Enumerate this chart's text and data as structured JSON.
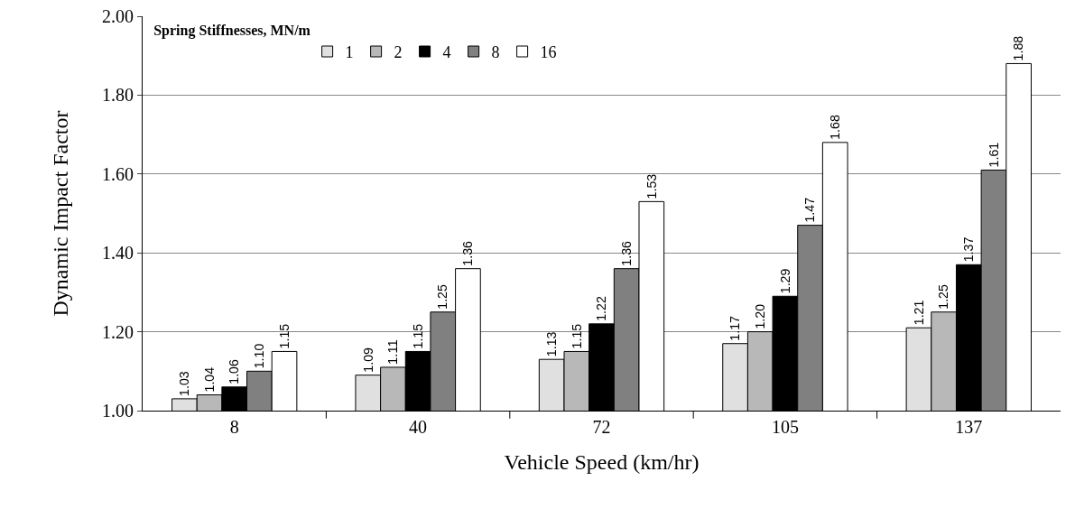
{
  "chart_data": {
    "type": "bar",
    "xlabel": "Vehicle Speed (km/hr)",
    "ylabel": "Dynamic Impact Factor",
    "legend_title": "Spring Stiffnesses, MN/m",
    "categories": [
      "8",
      "40",
      "72",
      "105",
      "137"
    ],
    "series": [
      {
        "name": "1",
        "color": "#e0e0e0",
        "values": [
          1.03,
          1.09,
          1.13,
          1.17,
          1.21
        ],
        "value_labels": [
          "1.03",
          "1.09",
          "1.13",
          "1.17",
          "1.21"
        ]
      },
      {
        "name": "2",
        "color": "#b8b8b8",
        "values": [
          1.04,
          1.11,
          1.15,
          1.2,
          1.25
        ],
        "value_labels": [
          "1.04",
          "1.11",
          "1.15",
          "1.20",
          "1.25"
        ]
      },
      {
        "name": "4",
        "color": "#000000",
        "values": [
          1.06,
          1.15,
          1.22,
          1.29,
          1.37
        ],
        "value_labels": [
          "1.06",
          "1.15",
          "1.22",
          "1.29",
          "1.37"
        ]
      },
      {
        "name": "8",
        "color": "#808080",
        "values": [
          1.1,
          1.25,
          1.36,
          1.47,
          1.61
        ],
        "value_labels": [
          "1.10",
          "1.25",
          "1.36",
          "1.47",
          "1.61"
        ]
      },
      {
        "name": "16",
        "color": "#ffffff",
        "values": [
          1.15,
          1.36,
          1.53,
          1.68,
          1.88
        ],
        "value_labels": [
          "1.15",
          "1.36",
          "1.53",
          "1.68",
          "1.88"
        ]
      }
    ],
    "ylim": [
      1,
      2
    ],
    "yticks": [
      {
        "value": 1,
        "label": "1.00"
      },
      {
        "value": 1.2,
        "label": "1.20"
      },
      {
        "value": 1.4,
        "label": "1.40"
      },
      {
        "value": 1.6,
        "label": "1.60"
      },
      {
        "value": 1.8,
        "label": "1.80"
      },
      {
        "value": 2,
        "label": "2.00"
      }
    ],
    "grid": "y",
    "legend": "top left"
  }
}
